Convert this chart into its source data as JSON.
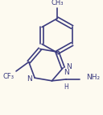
{
  "bg_color": "#FDFAF0",
  "line_color": "#3B3B7F",
  "text_color": "#3B3B7F",
  "bond_lw": 1.2,
  "figsize": [
    1.28,
    1.42
  ],
  "dpi": 100,
  "xlim": [
    0,
    128
  ],
  "ylim": [
    0,
    142
  ]
}
